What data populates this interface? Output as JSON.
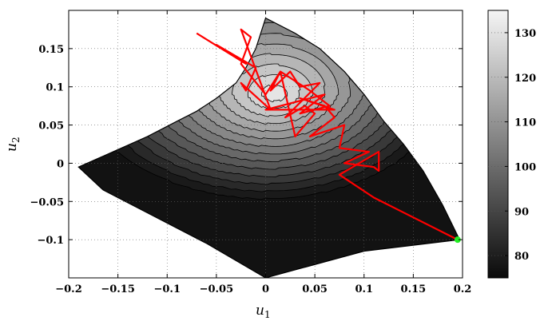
{
  "chart_data": {
    "type": "contour",
    "xlabel": "u",
    "xlabel_sub": "1",
    "ylabel": "u",
    "ylabel_sub": "2",
    "xlim": [
      -0.2,
      0.2
    ],
    "ylim": [
      -0.15,
      0.2
    ],
    "x_ticks": [
      -0.2,
      -0.15,
      -0.1,
      -0.05,
      0,
      0.05,
      0.1,
      0.15,
      0.2
    ],
    "x_tick_labels": [
      "−0.2",
      "−0.15",
      "−0.1",
      "−0.05",
      "0",
      "0.05",
      "0.1",
      "0.15",
      "0.2"
    ],
    "y_ticks": [
      -0.1,
      -0.05,
      0,
      0.05,
      0.1,
      0.15
    ],
    "y_tick_labels": [
      "−0.1",
      "−0.05",
      "0",
      "0.05",
      "0.1",
      "0.15"
    ],
    "grid": true,
    "colormap": "gray",
    "colorbar": {
      "range": [
        75,
        135
      ],
      "ticks": [
        80,
        90,
        100,
        110,
        120,
        130
      ],
      "tick_labels": [
        "80",
        "90",
        "100",
        "110",
        "120",
        "130"
      ]
    },
    "contour_levels": [
      77,
      81,
      85,
      89,
      93,
      97,
      101,
      105,
      109,
      113,
      117,
      121,
      125,
      129,
      133
    ],
    "trajectory": {
      "color": "#ff0000",
      "points": [
        [
          -0.07,
          0.17
        ],
        [
          -0.02,
          0.13
        ],
        [
          -0.05,
          0.155
        ],
        [
          -0.01,
          0.125
        ],
        [
          -0.02,
          0.095
        ],
        [
          -0.025,
          0.105
        ],
        [
          0.005,
          0.07
        ],
        [
          -0.025,
          0.175
        ],
        [
          -0.015,
          0.165
        ],
        [
          -0.025,
          0.13
        ],
        [
          0.0,
          0.09
        ],
        [
          0.015,
          0.12
        ],
        [
          0.005,
          0.095
        ],
        [
          0.025,
          0.12
        ],
        [
          0.035,
          0.1
        ],
        [
          0.055,
          0.105
        ],
        [
          0.02,
          0.06
        ],
        [
          0.04,
          0.075
        ],
        [
          0.05,
          0.065
        ],
        [
          0.03,
          0.035
        ],
        [
          0.015,
          0.12
        ],
        [
          0.045,
          0.095
        ],
        [
          0.065,
          0.075
        ],
        [
          0.035,
          0.065
        ],
        [
          0.06,
          0.09
        ],
        [
          0.0,
          0.07
        ],
        [
          0.07,
          0.07
        ],
        [
          0.035,
          0.085
        ],
        [
          0.06,
          0.075
        ],
        [
          0.07,
          0.06
        ],
        [
          0.045,
          0.035
        ],
        [
          0.08,
          0.05
        ],
        [
          0.075,
          0.02
        ],
        [
          0.105,
          0.015
        ],
        [
          0.08,
          0.0
        ],
        [
          0.11,
          -0.005
        ],
        [
          0.115,
          -0.01
        ],
        [
          0.115,
          0.015
        ],
        [
          0.075,
          -0.015
        ],
        [
          0.11,
          -0.045
        ],
        [
          0.195,
          -0.1
        ]
      ]
    },
    "end_marker": {
      "x": 0.195,
      "y": -0.1,
      "color": "#22ee22"
    }
  }
}
